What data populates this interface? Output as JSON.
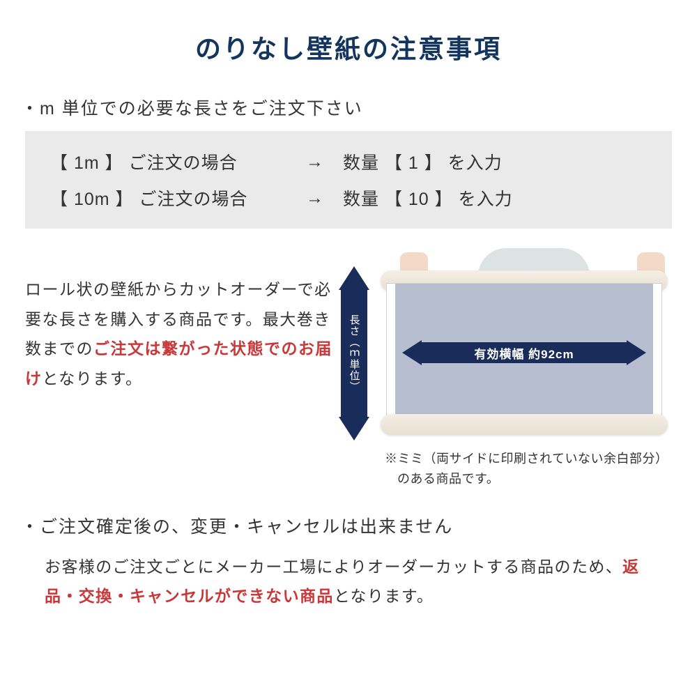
{
  "colors": {
    "title": "#13345c",
    "warn": "#c93838",
    "arrow": "#1a2d5a",
    "paper": "#b7bed0",
    "graybox": "#eaeaea",
    "text": "#333333"
  },
  "title": "のりなし壁紙の注意事項",
  "section1": {
    "header": "・m 単位での必要な長さをご注文下さい",
    "examples": [
      {
        "left": "【  1m  】 ご注文の場合",
        "arrow": "→",
        "right": "数量 【  1  】 を入力"
      },
      {
        "left": "【 10m 】 ご注文の場合",
        "arrow": "→",
        "right": "数量 【  10  】 を入力"
      }
    ],
    "desc_pre": "ロール状の壁紙からカットオーダーで必要な長さを購入する商品です。最大巻き数までの",
    "desc_red": "ご注文は繋がった状態でのお届け",
    "desc_post": "となります。",
    "v_arrow_label": "長さ（ｍ単位）",
    "h_arrow_label": "有効横幅 約92cm",
    "note": "※ミミ（両サイドに印刷されていない余白部分）のある商品です。"
  },
  "section2": {
    "header": "・ご注文確定後の、変更・キャンセルは出来ません",
    "desc_pre": "お客様のご注文ごとにメーカー工場によりオーダーカットする商品のため、",
    "desc_red": "返品・交換・キャンセルができない商品",
    "desc_post": "となります。"
  }
}
